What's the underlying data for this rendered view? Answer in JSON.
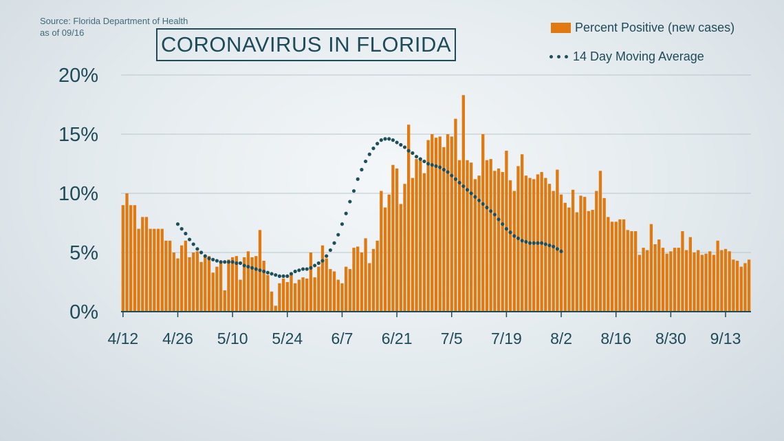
{
  "source": {
    "line1": "Source: Florida Department of Health",
    "line2": "as of 09/16"
  },
  "legend": {
    "bar_label": "Percent Positive (new cases)",
    "line_label": "14 Day Moving Average"
  },
  "colors": {
    "bar": "#e07a10",
    "line": "#1f4f59",
    "grid": "#b8c6cd",
    "axis": "#1f4a57",
    "text": "#1f4a57"
  },
  "chart_data": {
    "type": "bar",
    "title": "CORONAVIRUS IN FLORIDA",
    "xlabel": "",
    "ylabel": "",
    "ylim": [
      0,
      20
    ],
    "yticks": [
      0,
      5,
      10,
      15,
      20
    ],
    "ytick_labels": [
      "0%",
      "5%",
      "10%",
      "15%",
      "20%"
    ],
    "x_tick_labels": [
      "4/12",
      "4/26",
      "5/10",
      "5/24",
      "6/7",
      "6/21",
      "7/5",
      "7/19",
      "8/2",
      "8/16",
      "8/30",
      "9/13"
    ],
    "x_tick_index": [
      0,
      14,
      28,
      42,
      56,
      70,
      84,
      98,
      112,
      126,
      140,
      154
    ],
    "grid": true,
    "legend_position": "top-right",
    "series": [
      {
        "name": "Percent Positive (new cases)",
        "type": "bar",
        "values": [
          9.0,
          10.0,
          9.0,
          9.0,
          7.0,
          8.0,
          8.0,
          7.0,
          7.0,
          7.0,
          7.0,
          6.0,
          6.0,
          5.0,
          4.5,
          5.6,
          6.0,
          4.6,
          5.0,
          5.1,
          4.2,
          4.8,
          4.7,
          3.3,
          3.8,
          4.3,
          1.8,
          4.4,
          4.6,
          4.7,
          2.7,
          4.6,
          5.1,
          4.6,
          4.7,
          6.9,
          4.3,
          3.1,
          1.7,
          0.5,
          2.4,
          2.8,
          2.5,
          3.2,
          2.4,
          2.7,
          2.9,
          2.8,
          5.0,
          2.9,
          3.8,
          5.6,
          4.5,
          3.6,
          3.4,
          2.7,
          2.4,
          3.8,
          3.6,
          5.4,
          5.5,
          5.0,
          6.2,
          4.1,
          5.3,
          6.0,
          10.2,
          8.8,
          9.9,
          12.4,
          12.1,
          9.1,
          10.8,
          15.8,
          11.3,
          12.9,
          12.8,
          11.7,
          14.5,
          15.0,
          14.7,
          14.8,
          13.9,
          15.0,
          14.8,
          16.3,
          12.8,
          18.3,
          12.8,
          12.6,
          11.2,
          11.5,
          15.0,
          12.8,
          12.9,
          11.9,
          12.1,
          11.8,
          13.6,
          11.1,
          10.2,
          12.3,
          13.3,
          11.5,
          11.3,
          11.2,
          11.6,
          11.8,
          11.3,
          10.8,
          10.2,
          12.0,
          9.9,
          9.2,
          8.8,
          10.3,
          8.4,
          9.8,
          9.7,
          8.5,
          8.6,
          10.2,
          11.9,
          9.6,
          8.0,
          7.6,
          7.6,
          7.8,
          7.8,
          6.9,
          6.8,
          6.8,
          4.8,
          5.4,
          5.2,
          7.4,
          5.7,
          6.1,
          5.4,
          4.9,
          5.1,
          5.4,
          5.4,
          6.8,
          5.2,
          6.3,
          5.0,
          5.2,
          4.8,
          4.9,
          5.1,
          4.8,
          6.0,
          5.2,
          5.3,
          5.1,
          4.4,
          4.3,
          3.8,
          4.1,
          4.4
        ]
      },
      {
        "name": "14 Day Moving Average",
        "type": "line",
        "start_index": 14,
        "values": [
          7.4,
          7.0,
          6.6,
          6.1,
          5.7,
          5.3,
          5.0,
          4.7,
          4.5,
          4.4,
          4.3,
          4.2,
          4.2,
          4.2,
          4.2,
          4.1,
          4.1,
          3.9,
          3.8,
          3.7,
          3.6,
          3.5,
          3.4,
          3.3,
          3.2,
          3.1,
          3.0,
          3.0,
          3.0,
          3.2,
          3.4,
          3.5,
          3.6,
          3.6,
          3.7,
          3.9,
          4.1,
          4.3,
          4.7,
          5.2,
          5.8,
          6.5,
          7.4,
          8.3,
          9.3,
          10.2,
          11.2,
          12.0,
          12.7,
          13.3,
          13.8,
          14.2,
          14.5,
          14.6,
          14.6,
          14.5,
          14.3,
          14.1,
          13.9,
          13.6,
          13.4,
          13.1,
          12.9,
          12.7,
          12.5,
          12.4,
          12.3,
          12.2,
          12.0,
          11.8,
          11.5,
          11.2,
          10.9,
          10.6,
          10.3,
          10.0,
          9.7,
          9.4,
          9.1,
          8.8,
          8.5,
          8.2,
          7.8,
          7.4,
          7.0,
          6.7,
          6.4,
          6.2,
          6.0,
          5.9,
          5.8,
          5.8,
          5.8,
          5.8,
          5.7,
          5.6,
          5.5,
          5.3,
          5.1
        ]
      }
    ]
  }
}
